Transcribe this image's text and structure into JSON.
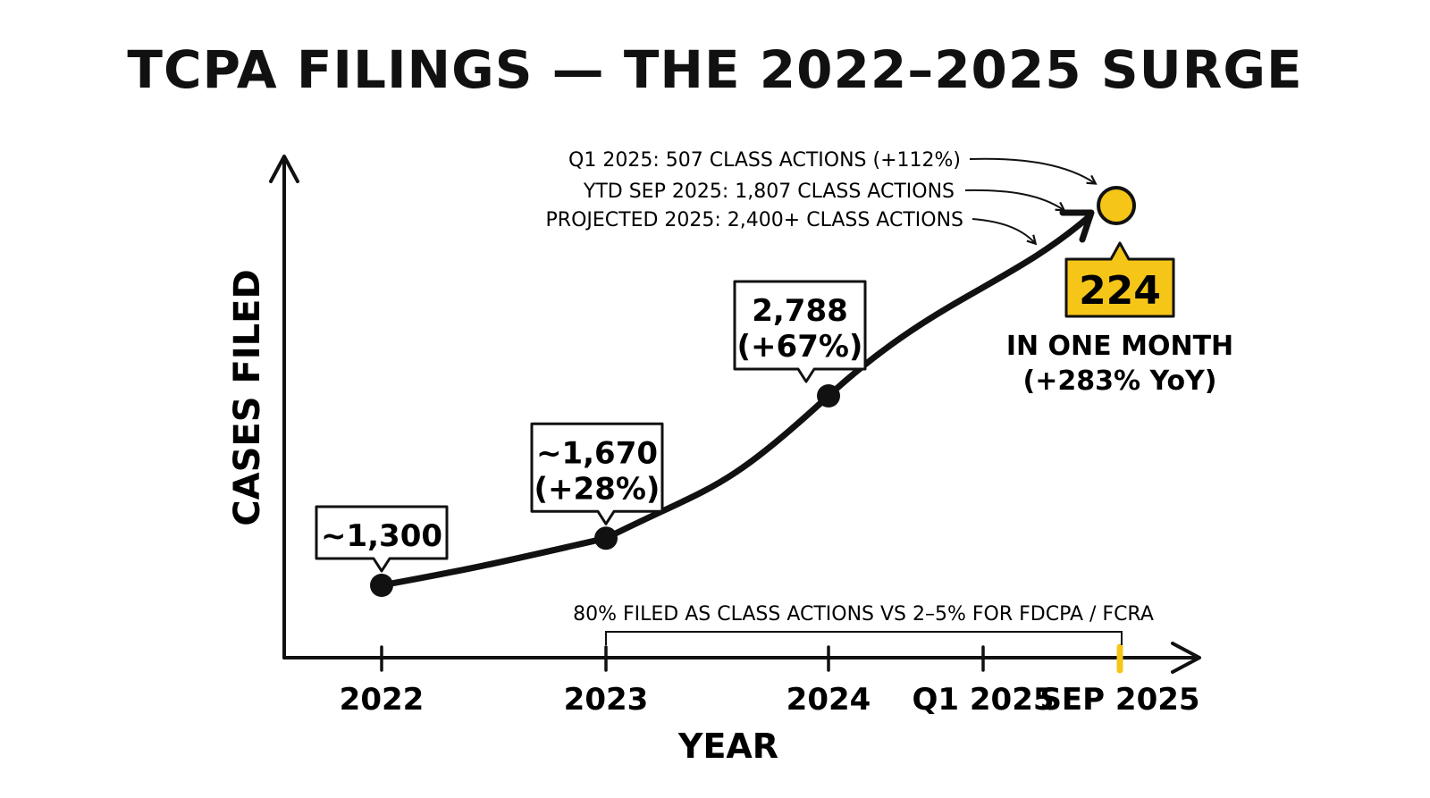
{
  "title": "TCPA FILINGS — THE 2022–2025 SURGE",
  "chart_data": {
    "type": "line",
    "title": "TCPA FILINGS — THE 2022–2025 SURGE",
    "xlabel": "YEAR",
    "ylabel": "CASES FILED",
    "x_ticks": [
      "2022",
      "2023",
      "2024",
      "Q1 2025",
      "SEP 2025"
    ],
    "series": [
      {
        "points": [
          {
            "x": "2022",
            "y": 1300,
            "label": [
              "~1,300"
            ]
          },
          {
            "x": "2023",
            "y": 1670,
            "label": [
              "~1,670",
              "(+28%)"
            ]
          },
          {
            "x": "2024",
            "y": 2788,
            "label": [
              "2,788",
              "(+67%)"
            ]
          }
        ]
      }
    ],
    "highlight": {
      "x": "SEP 2025",
      "value": "224",
      "notes": [
        "IN ONE MONTH",
        "(+283% YoY)"
      ],
      "color": "#f5c518"
    },
    "annotations": [
      "Q1 2025: 507 CLASS ACTIONS (+112%)",
      "YTD SEP 2025: 1,807 CLASS ACTIONS",
      "PROJECTED 2025: 2,400+ CLASS ACTIONS"
    ],
    "bracket": {
      "from": "2023",
      "to": "SEP 2025",
      "label": "80% FILED AS CLASS ACTIONS VS 2–5% FOR FDCPA / FCRA"
    },
    "grid": false
  }
}
